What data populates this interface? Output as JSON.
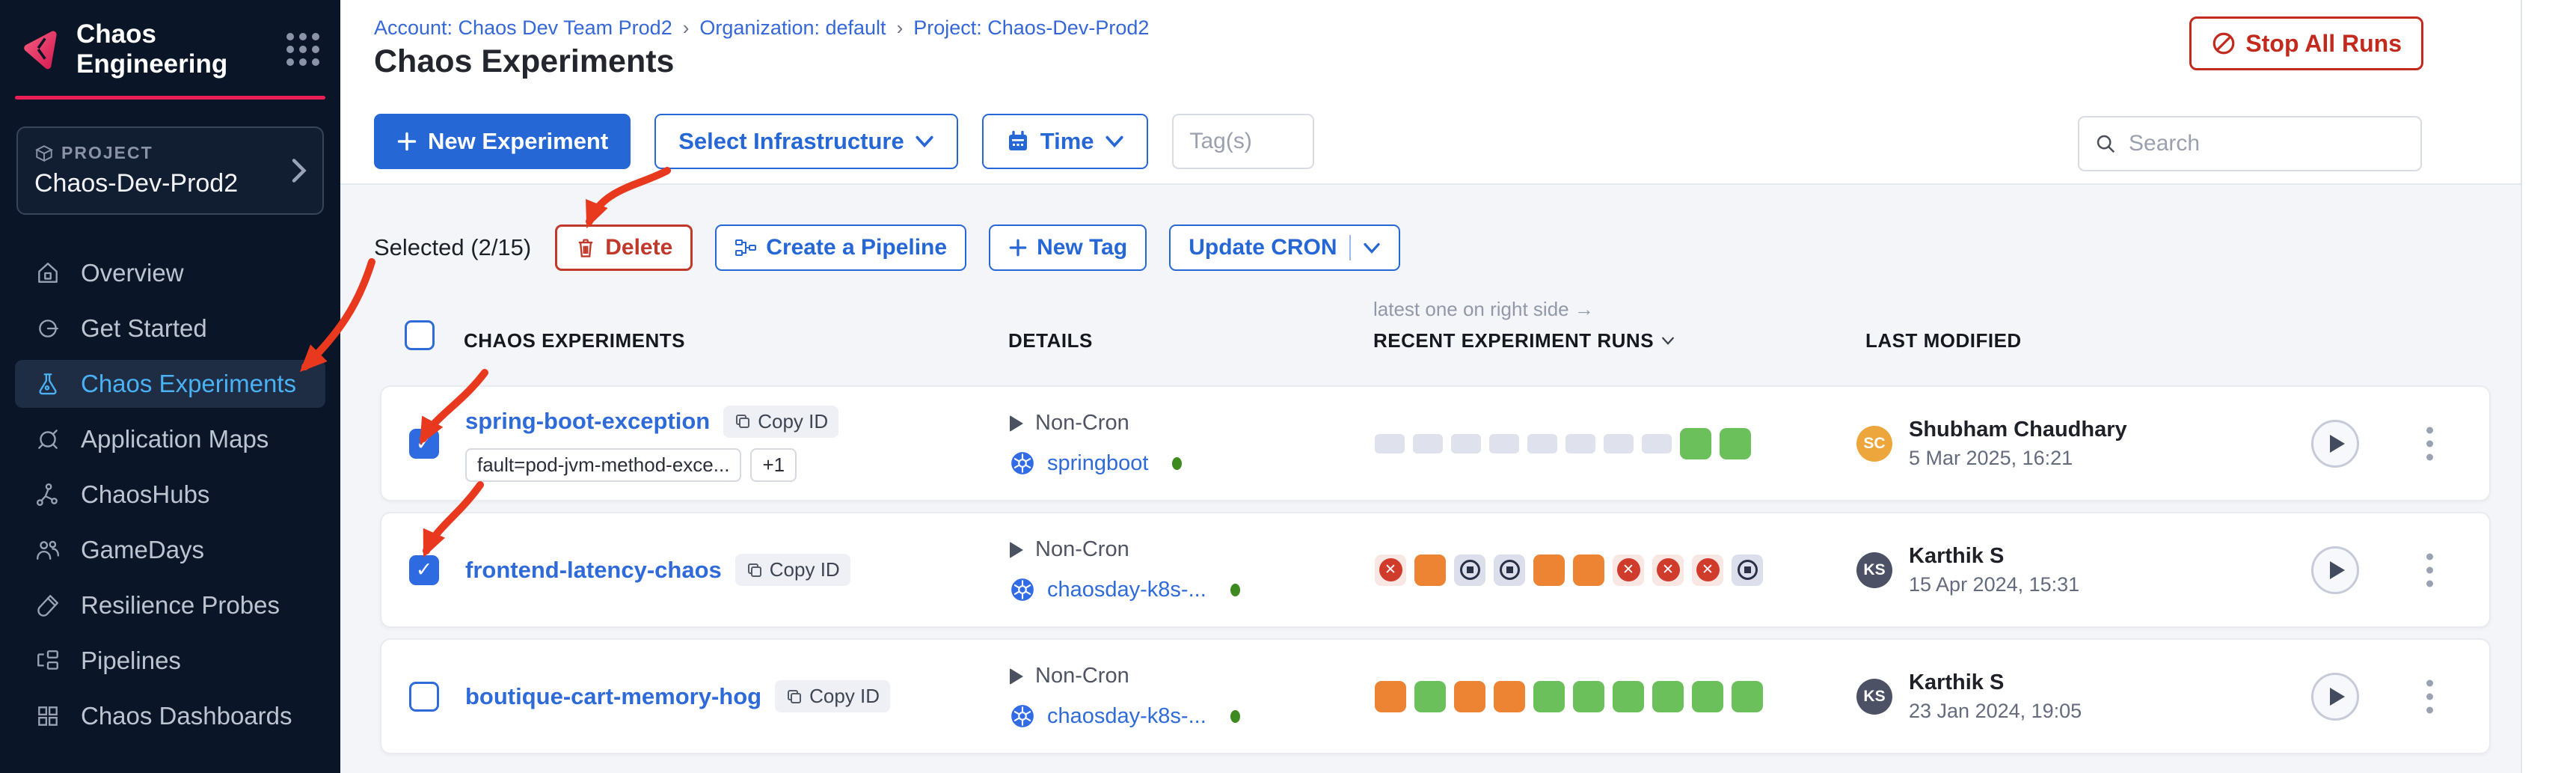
{
  "sidebar": {
    "brand": "Chaos Engineering",
    "project_label": "PROJECT",
    "project_name": "Chaos-Dev-Prod2",
    "items": [
      {
        "label": "Overview",
        "state": ""
      },
      {
        "label": "Get Started",
        "state": ""
      },
      {
        "label": "Chaos Experiments",
        "state": "active"
      },
      {
        "label": "Application Maps",
        "state": ""
      },
      {
        "label": "ChaosHubs",
        "state": ""
      },
      {
        "label": "GameDays",
        "state": ""
      },
      {
        "label": "Resilience Probes",
        "state": ""
      },
      {
        "label": "Pipelines",
        "state": ""
      },
      {
        "label": "Chaos Dashboards",
        "state": ""
      }
    ]
  },
  "breadcrumb": {
    "items": [
      "Account: Chaos Dev Team Prod2",
      "Organization: default",
      "Project: Chaos-Dev-Prod2"
    ],
    "separator": "›"
  },
  "page": {
    "title": "Chaos Experiments",
    "stop_all_runs": "Stop All Runs"
  },
  "toolbar": {
    "new_experiment": "New Experiment",
    "select_infrastructure": "Select Infrastructure",
    "time": "Time",
    "tags_placeholder": "Tag(s)",
    "search_placeholder": "Search"
  },
  "selection": {
    "label": "Selected (2/15)",
    "delete": "Delete",
    "create_pipeline": "Create a Pipeline",
    "new_tag": "New Tag",
    "update_cron": "Update CRON"
  },
  "table": {
    "note": "latest one on right side →",
    "headers": {
      "experiments": "CHAOS EXPERIMENTS",
      "details": "DETAILS",
      "runs": "RECENT EXPERIMENT RUNS",
      "modified": "LAST MODIFIED"
    }
  },
  "rows": [
    {
      "name": "spring-boot-exception",
      "copy_label": "Copy ID",
      "checkbox_state": "checked",
      "tags": {
        "0": "fault=pod-jvm-method-exce...",
        "1": "+1"
      },
      "cron": "Non-Cron",
      "infra": "springboot",
      "runs": [
        "empty",
        "empty",
        "empty",
        "empty",
        "empty",
        "empty",
        "empty",
        "empty",
        "green",
        "green"
      ],
      "modifier": {
        "initials": "SC",
        "name": "Shubham Chaudhary",
        "date": "5 Mar 2025, 16:21",
        "avatar_color": "#eda63c"
      }
    },
    {
      "name": "frontend-latency-chaos",
      "copy_label": "Copy ID",
      "checkbox_state": "checked",
      "cron": "Non-Cron",
      "infra": "chaosday-k8s-...",
      "runs": [
        "failed",
        "orange",
        "stopped",
        "stopped",
        "orange",
        "orange",
        "failed",
        "failed",
        "failed",
        "stopped"
      ],
      "modifier": {
        "initials": "KS",
        "name": "Karthik S",
        "date": "15 Apr 2024, 15:31",
        "avatar_color": "#4c5166"
      }
    },
    {
      "name": "boutique-cart-memory-hog",
      "copy_label": "Copy ID",
      "checkbox_state": "",
      "cron": "Non-Cron",
      "infra": "chaosday-k8s-...",
      "runs": [
        "orange",
        "green",
        "orange",
        "orange",
        "green",
        "green",
        "green",
        "green",
        "green",
        "green"
      ],
      "modifier": {
        "initials": "KS",
        "name": "Karthik S",
        "date": "23 Jan 2024, 19:05",
        "avatar_color": "#4c5166"
      }
    }
  ],
  "status_colors": {
    "completed": "#6cc05b",
    "running": "#ec8433",
    "failed": "#cf3c2c",
    "empty": "#dfe1ec",
    "accent_blue": "#2667d6",
    "danger_red": "#c22a1e",
    "annotation": "#e8391f"
  }
}
